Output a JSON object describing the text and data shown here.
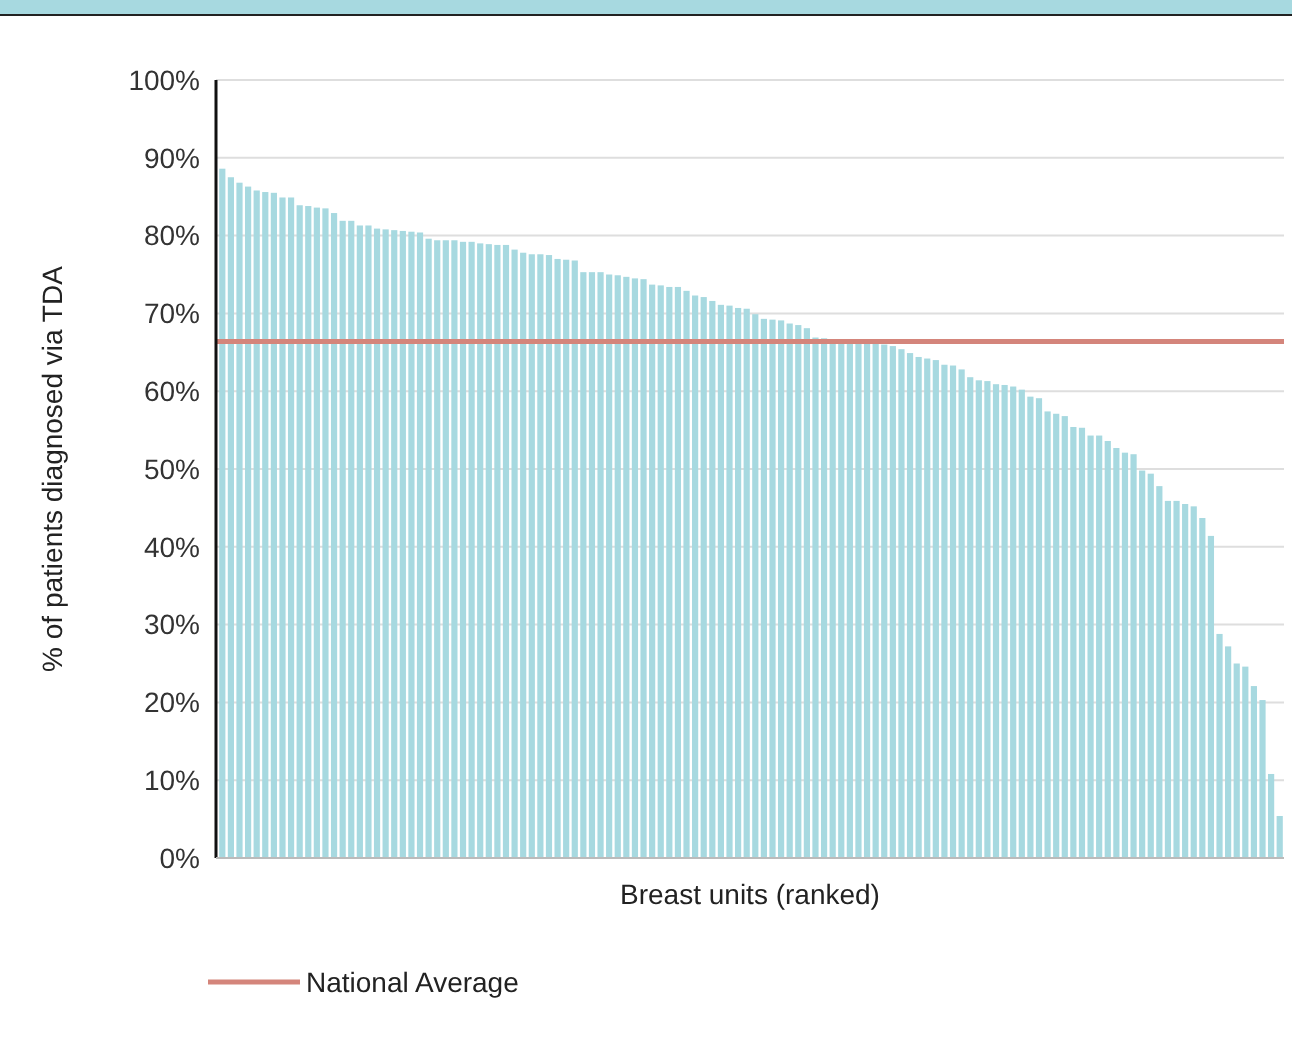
{
  "chart_data": {
    "type": "bar",
    "xlabel": "Breast units (ranked)",
    "ylabel": "% of patients diagnosed via TDA",
    "categories": [
      null,
      null,
      null,
      null,
      null,
      null,
      null,
      null,
      null,
      null,
      null,
      null,
      null,
      null,
      null,
      null,
      null,
      null,
      null,
      null,
      null,
      null,
      null,
      null,
      null,
      null,
      null,
      null,
      null,
      null,
      null,
      null,
      null,
      null,
      null,
      null,
      null,
      null,
      null,
      null,
      null,
      null,
      null,
      null,
      null,
      null,
      null,
      null,
      null,
      null,
      null,
      null,
      null,
      null,
      null,
      null,
      null,
      null,
      null,
      null,
      null,
      null,
      null,
      null,
      null,
      null,
      null,
      null,
      null,
      null,
      null,
      null,
      null,
      null,
      null,
      null,
      null,
      null,
      null,
      null,
      null,
      null,
      null,
      null,
      null,
      null,
      null,
      null,
      null,
      null,
      null,
      null,
      null,
      null,
      null,
      null,
      null,
      null,
      null,
      null,
      null,
      null,
      null,
      null,
      null,
      null,
      null,
      null,
      null,
      null,
      null,
      null,
      null,
      null,
      null,
      null,
      null,
      null,
      null,
      null,
      null,
      null,
      null,
      null
    ],
    "values": [
      88.6,
      87.5,
      86.8,
      86.3,
      85.8,
      85.6,
      85.5,
      84.9,
      84.9,
      83.9,
      83.8,
      83.6,
      83.5,
      82.9,
      81.9,
      81.9,
      81.3,
      81.3,
      80.9,
      80.8,
      80.7,
      80.6,
      80.5,
      80.4,
      79.6,
      79.4,
      79.4,
      79.4,
      79.2,
      79.2,
      79.0,
      78.9,
      78.8,
      78.8,
      78.2,
      77.8,
      77.6,
      77.6,
      77.5,
      77.0,
      76.9,
      76.8,
      75.3,
      75.3,
      75.3,
      75.0,
      74.9,
      74.7,
      74.5,
      74.4,
      73.7,
      73.6,
      73.4,
      73.4,
      72.9,
      72.3,
      72.1,
      71.6,
      71.1,
      71.0,
      70.7,
      70.6,
      69.9,
      69.3,
      69.2,
      69.1,
      68.7,
      68.5,
      68.1,
      66.9,
      66.8,
      66.5,
      66.5,
      66.4,
      66.3,
      66.2,
      66.1,
      66.0,
      65.8,
      65.4,
      64.9,
      64.4,
      64.2,
      64.0,
      63.4,
      63.3,
      62.8,
      61.8,
      61.4,
      61.3,
      60.9,
      60.8,
      60.6,
      60.2,
      59.3,
      59.1,
      57.4,
      57.1,
      56.8,
      55.4,
      55.3,
      54.3,
      54.3,
      53.6,
      52.7,
      52.1,
      51.9,
      49.8,
      49.4,
      47.8,
      45.9,
      45.9,
      45.5,
      45.2,
      43.7,
      41.4,
      28.8,
      27.2,
      25.0,
      24.6,
      22.1,
      20.3,
      10.8,
      5.4
    ],
    "color": "#a7d9e0",
    "ylim": [
      0,
      100
    ],
    "yticks": [
      {
        "value": 0,
        "label": "0%"
      },
      {
        "value": 10,
        "label": "10%"
      },
      {
        "value": 20,
        "label": "20%"
      },
      {
        "value": 30,
        "label": "30%"
      },
      {
        "value": 40,
        "label": "40%"
      },
      {
        "value": 50,
        "label": "50%"
      },
      {
        "value": 60,
        "label": "60%"
      },
      {
        "value": 70,
        "label": "70%"
      },
      {
        "value": 80,
        "label": "80%"
      },
      {
        "value": 90,
        "label": "90%"
      },
      {
        "value": 100,
        "label": "100%"
      }
    ],
    "grid": "y",
    "ref_lines": [
      {
        "axis": "y",
        "value": 66.4,
        "label": "National Average",
        "color": "#d4857b"
      }
    ],
    "legend": "bottom left"
  }
}
